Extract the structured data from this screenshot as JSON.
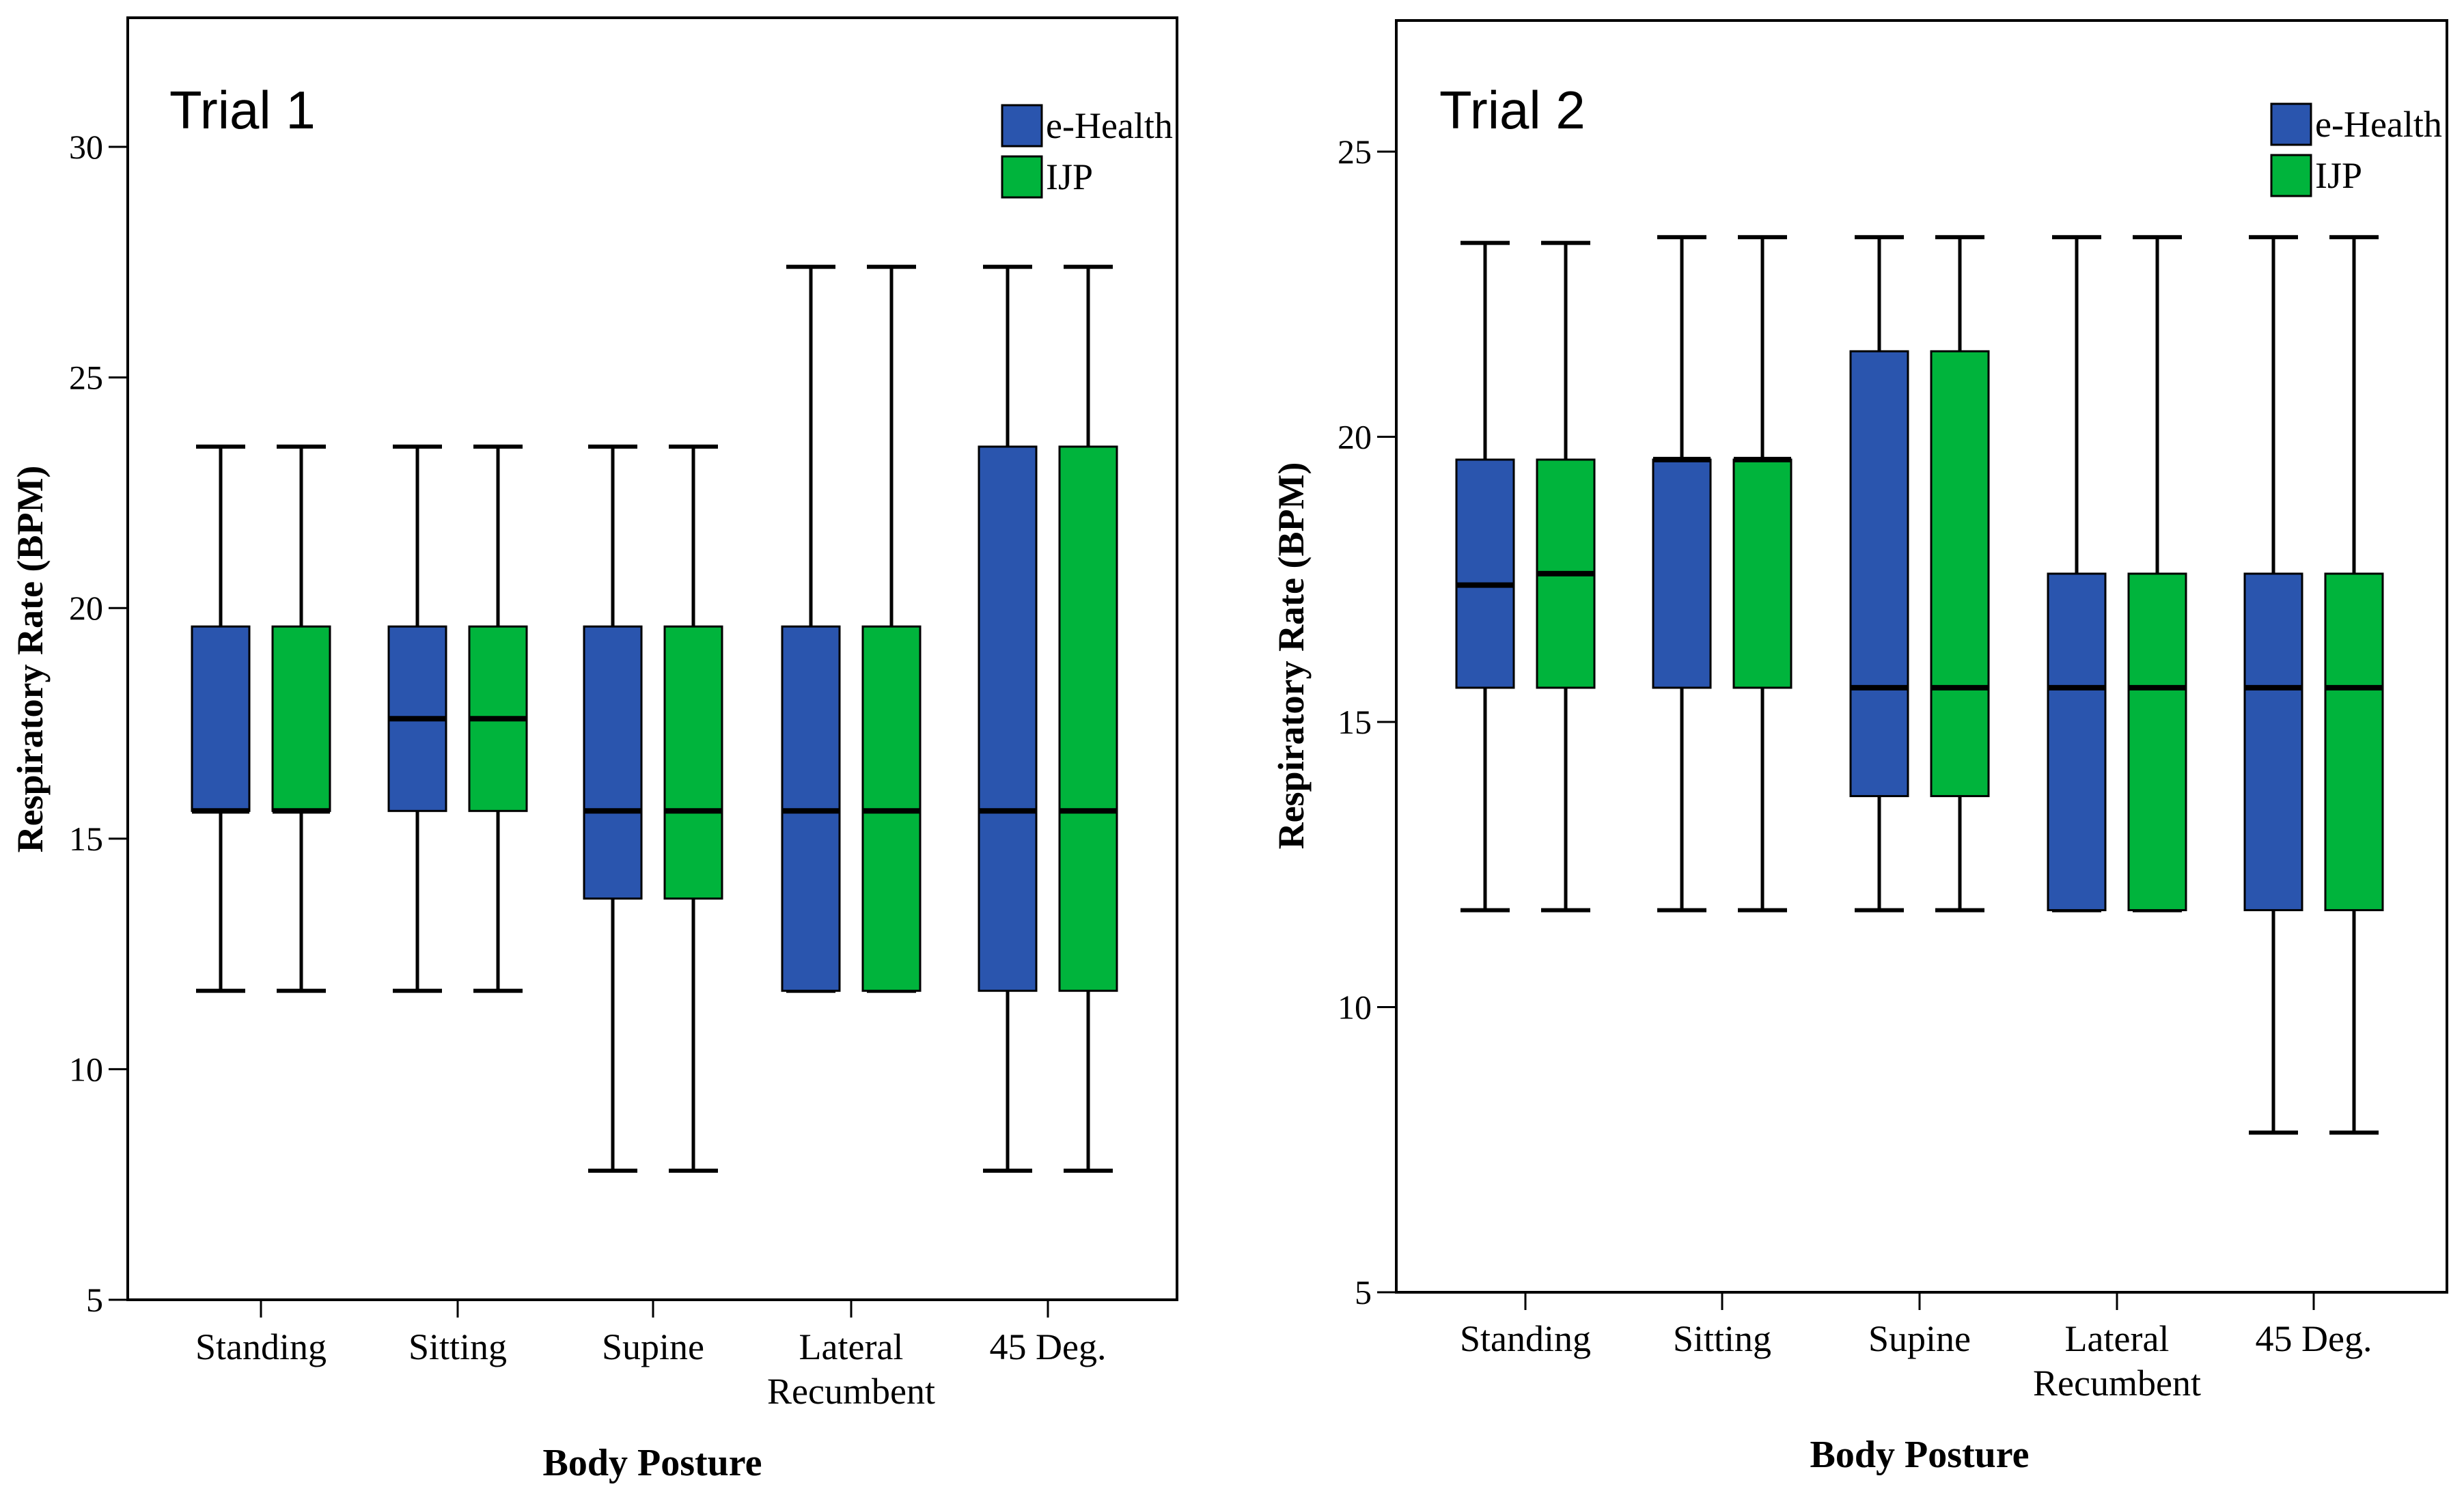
{
  "colors": {
    "ehealth": "#2A55AE",
    "ijp": "#00B43C",
    "frame": "#000000",
    "background": "#FFFFFF"
  },
  "chart_data": [
    {
      "type": "boxplot",
      "title": "Trial 1",
      "xlabel": "Body Posture",
      "ylabel": "Respiratory Rate (BPM)",
      "ylim": [
        5,
        32.8
      ],
      "yticks": [
        5,
        10,
        15,
        20,
        25,
        30
      ],
      "legend": {
        "position": "top-right",
        "entries": [
          "e-Health",
          "IJP"
        ]
      },
      "categories": [
        {
          "label": "Standing",
          "lines": [
            "Standing"
          ]
        },
        {
          "label": "Sitting",
          "lines": [
            "Sitting"
          ]
        },
        {
          "label": "Supine",
          "lines": [
            "Supine"
          ]
        },
        {
          "label": "Lateral Recumbent",
          "lines": [
            "Lateral",
            "Recumbent"
          ]
        },
        {
          "label": "45 Deg.",
          "lines": [
            "45 Deg."
          ]
        }
      ],
      "series": [
        {
          "name": "e-Health",
          "boxes": [
            {
              "min": 11.7,
              "q1": 15.6,
              "median": 15.6,
              "q3": 19.6,
              "max": 23.5
            },
            {
              "min": 11.7,
              "q1": 15.6,
              "median": 17.6,
              "q3": 19.6,
              "max": 23.5
            },
            {
              "min": 7.8,
              "q1": 13.7,
              "median": 15.6,
              "q3": 19.6,
              "max": 23.5
            },
            {
              "min": 11.7,
              "q1": 11.7,
              "median": 15.6,
              "q3": 19.6,
              "max": 27.4
            },
            {
              "min": 7.8,
              "q1": 11.7,
              "median": 15.6,
              "q3": 23.5,
              "max": 27.4
            }
          ]
        },
        {
          "name": "IJP",
          "boxes": [
            {
              "min": 11.7,
              "q1": 15.6,
              "median": 15.6,
              "q3": 19.6,
              "max": 23.5
            },
            {
              "min": 11.7,
              "q1": 15.6,
              "median": 17.6,
              "q3": 19.6,
              "max": 23.5
            },
            {
              "min": 7.8,
              "q1": 13.7,
              "median": 15.6,
              "q3": 19.6,
              "max": 23.5
            },
            {
              "min": 11.7,
              "q1": 11.7,
              "median": 15.6,
              "q3": 19.6,
              "max": 27.4
            },
            {
              "min": 7.8,
              "q1": 11.7,
              "median": 15.6,
              "q3": 23.5,
              "max": 27.4
            }
          ]
        }
      ]
    },
    {
      "type": "boxplot",
      "title": "Trial 2",
      "xlabel": "Body Posture",
      "ylabel": "Respiratory Rate (BPM)",
      "ylim": [
        5,
        27.3
      ],
      "yticks": [
        5,
        10,
        15,
        20,
        25
      ],
      "legend": {
        "position": "top-right",
        "entries": [
          "e-Health",
          "IJP"
        ]
      },
      "categories": [
        {
          "label": "Standing",
          "lines": [
            "Standing"
          ]
        },
        {
          "label": "Sitting",
          "lines": [
            "Sitting"
          ]
        },
        {
          "label": "Supine",
          "lines": [
            "Supine"
          ]
        },
        {
          "label": "Lateral Recumbent",
          "lines": [
            "Lateral",
            "Recumbent"
          ]
        },
        {
          "label": "45 Deg.",
          "lines": [
            "45 Deg."
          ]
        }
      ],
      "series": [
        {
          "name": "e-Health",
          "boxes": [
            {
              "min": 11.7,
              "q1": 15.6,
              "median": 17.4,
              "q3": 19.6,
              "max": 23.4
            },
            {
              "min": 11.7,
              "q1": 15.6,
              "median": 19.6,
              "q3": 19.6,
              "max": 23.5
            },
            {
              "min": 11.7,
              "q1": 13.7,
              "median": 15.6,
              "q3": 21.5,
              "max": 23.5
            },
            {
              "min": 11.7,
              "q1": 11.7,
              "median": 15.6,
              "q3": 17.6,
              "max": 23.5
            },
            {
              "min": 7.8,
              "q1": 11.7,
              "median": 15.6,
              "q3": 17.6,
              "max": 23.5
            }
          ]
        },
        {
          "name": "IJP",
          "boxes": [
            {
              "min": 11.7,
              "q1": 15.6,
              "median": 17.6,
              "q3": 19.6,
              "max": 23.4
            },
            {
              "min": 11.7,
              "q1": 15.6,
              "median": 19.6,
              "q3": 19.6,
              "max": 23.5
            },
            {
              "min": 11.7,
              "q1": 13.7,
              "median": 15.6,
              "q3": 21.5,
              "max": 23.5
            },
            {
              "min": 11.7,
              "q1": 11.7,
              "median": 15.6,
              "q3": 17.6,
              "max": 23.5
            },
            {
              "min": 7.8,
              "q1": 11.7,
              "median": 15.6,
              "q3": 17.6,
              "max": 23.5
            }
          ]
        }
      ]
    }
  ]
}
